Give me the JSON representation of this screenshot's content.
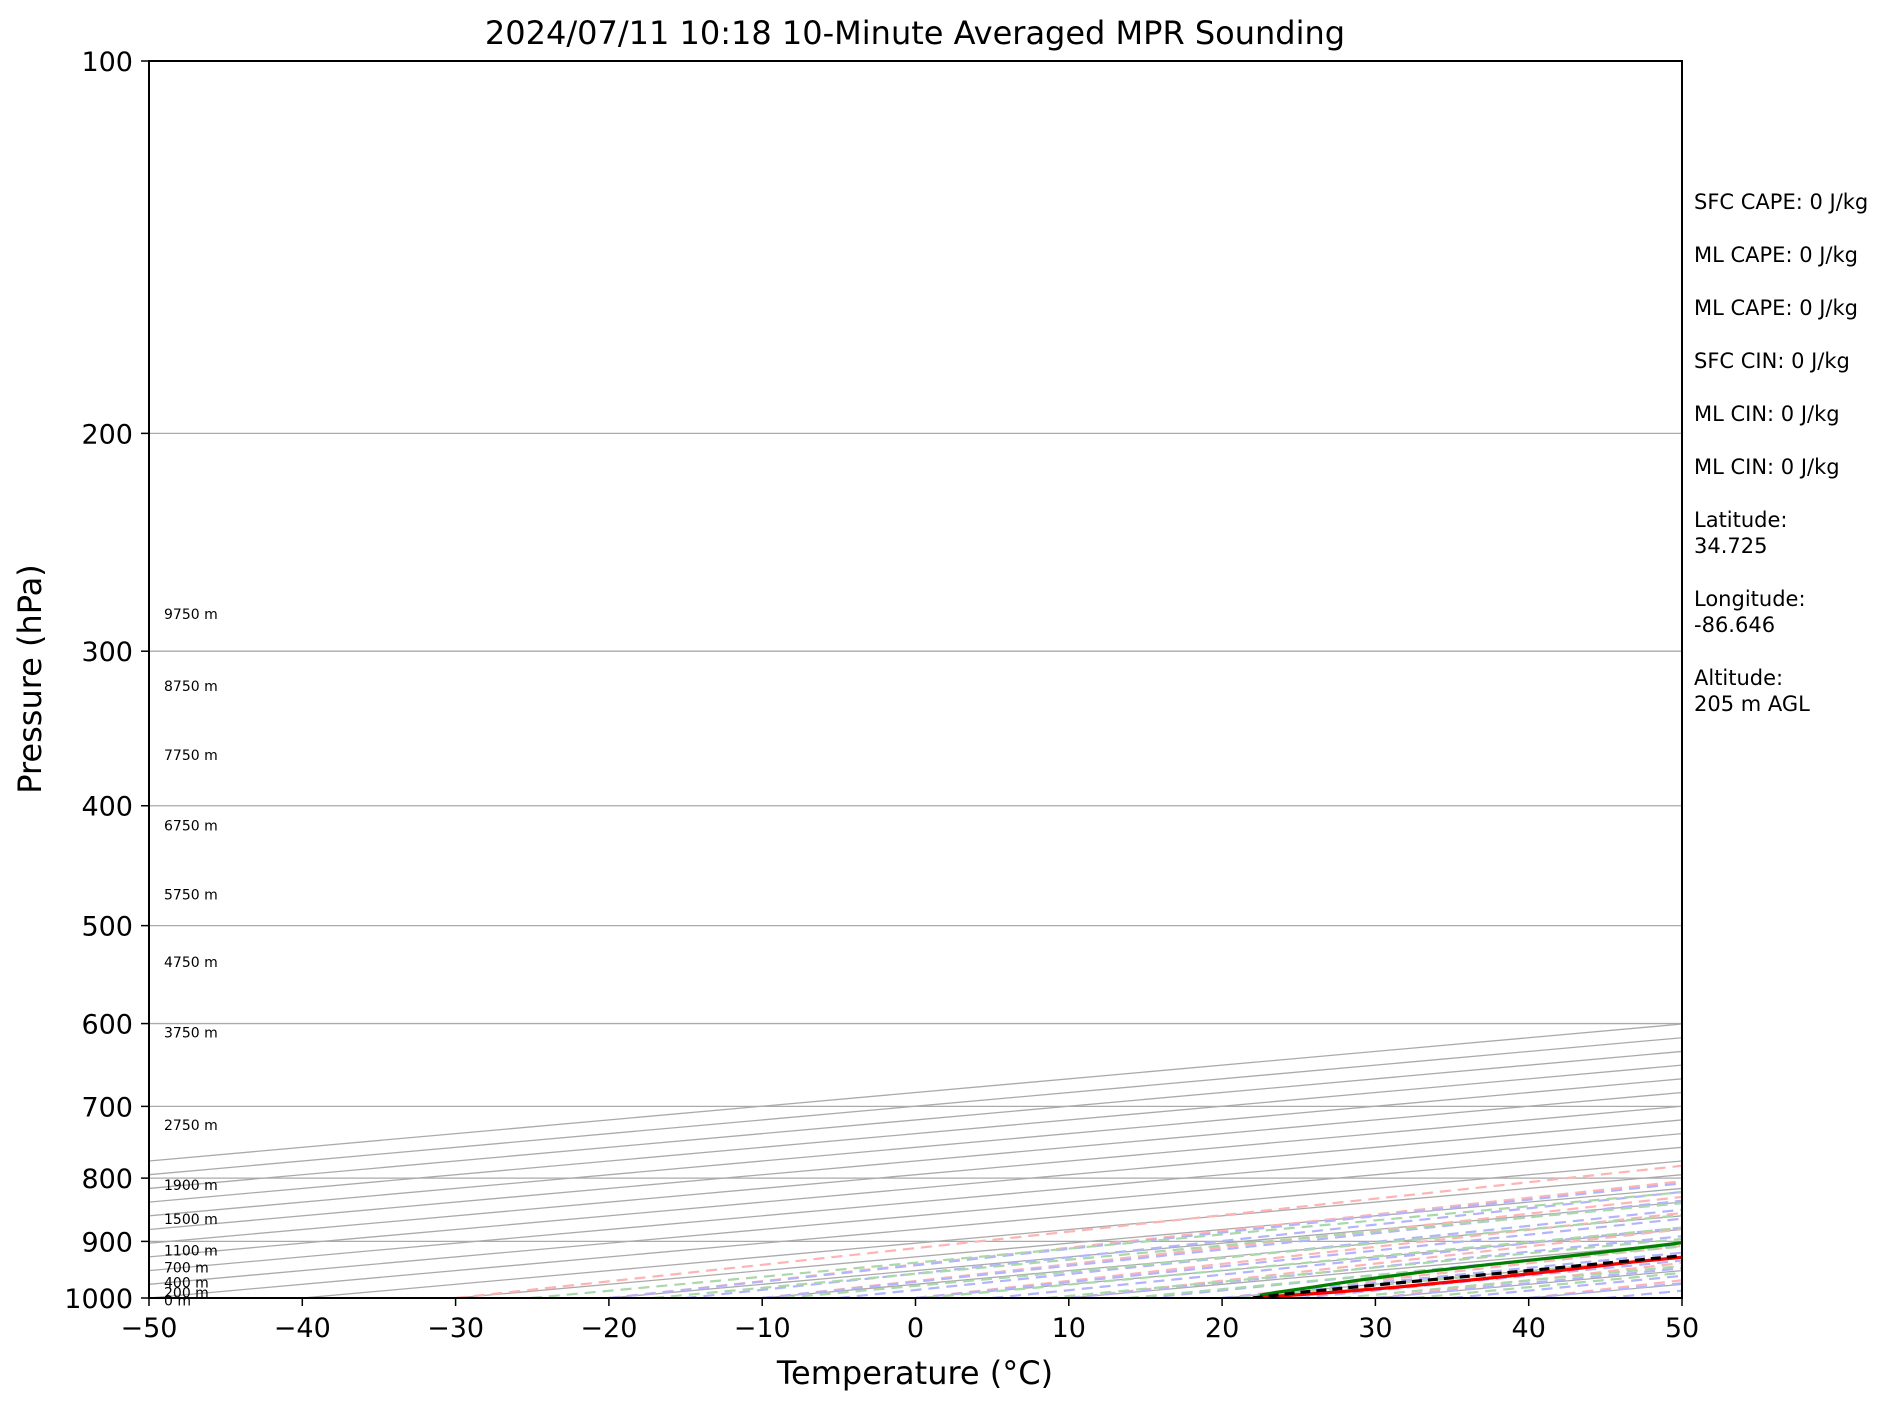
{
  "chart_data": {
    "type": "skew-t",
    "title": "2024/07/11 10:18 10-Minute Averaged MPR Sounding",
    "xlabel": "Temperature (°C)",
    "ylabel": "Pressure (hPa)",
    "xlim": [
      -50,
      50
    ],
    "ylim": [
      1000,
      100
    ],
    "y_scale": "log",
    "x_ticks": [
      "−50",
      "−40",
      "−30",
      "−20",
      "−10",
      "0",
      "10",
      "20",
      "30",
      "40",
      "50"
    ],
    "y_ticks": [
      "100",
      "200",
      "300",
      "400",
      "500",
      "600",
      "700",
      "800",
      "900",
      "1000"
    ],
    "height_labels": [
      {
        "text": "9750 m",
        "p": 280
      },
      {
        "text": "8750 m",
        "p": 320
      },
      {
        "text": "7750 m",
        "p": 364
      },
      {
        "text": "6750 m",
        "p": 415
      },
      {
        "text": "5750 m",
        "p": 472
      },
      {
        "text": "4750 m",
        "p": 535
      },
      {
        "text": "3750 m",
        "p": 610
      },
      {
        "text": "2750 m",
        "p": 725
      },
      {
        "text": "1900 m",
        "p": 810
      },
      {
        "text": "1500 m",
        "p": 863
      },
      {
        "text": "1100 m",
        "p": 915
      },
      {
        "text": "700 m",
        "p": 945
      },
      {
        "text": "400 m",
        "p": 972
      },
      {
        "text": "200 m",
        "p": 990
      },
      {
        "text": "0 m",
        "p": 1005
      }
    ],
    "annotations": [
      "SFC CAPE: 0 J/kg",
      "ML CAPE: 0 J/kg",
      "ML CAPE: 0 J/kg",
      "SFC CIN: 0 J/kg",
      "ML CIN: 0 J/kg",
      "ML CIN: 0 J/kg",
      "Latitude:\n34.725",
      "Longitude:\n-86.646",
      "Altitude:\n205 m AGL"
    ],
    "series": [
      {
        "color": "#ff0000",
        "points": [
          [
            22,
            1000
          ],
          [
            23,
            990
          ],
          [
            23.5,
            980
          ],
          [
            23,
            965
          ],
          [
            22,
            950
          ],
          [
            20.5,
            935
          ],
          [
            20,
            920
          ],
          [
            19.5,
            900
          ],
          [
            19,
            880
          ],
          [
            18.5,
            860
          ],
          [
            18,
            840
          ],
          [
            17.5,
            820
          ],
          [
            17.5,
            800
          ],
          [
            17.5,
            780
          ],
          [
            17.5,
            760
          ],
          [
            17,
            740
          ],
          [
            16,
            710
          ],
          [
            15,
            680
          ],
          [
            14,
            650
          ],
          [
            13,
            620
          ],
          [
            12.5,
            600
          ],
          [
            11.5,
            570
          ],
          [
            10,
            540
          ],
          [
            8.5,
            515
          ],
          [
            6.5,
            485
          ],
          [
            4,
            450
          ],
          [
            1,
            415
          ],
          [
            -1.5,
            390
          ],
          [
            -3.5,
            370
          ],
          [
            -6,
            348
          ],
          [
            -8.5,
            327
          ],
          [
            -10.5,
            310
          ],
          [
            -12,
            300
          ],
          [
            -14,
            290
          ],
          [
            -15,
            282
          ]
        ]
      },
      {
        "color": "#008000",
        "points": [
          [
            20.5,
            995
          ],
          [
            19.5,
            990
          ],
          [
            18,
            980
          ],
          [
            16,
            968
          ],
          [
            14,
            952
          ],
          [
            13,
            940
          ],
          [
            12,
            925
          ],
          [
            10,
            905
          ],
          [
            7,
            885
          ],
          [
            4.5,
            865
          ],
          [
            2.5,
            845
          ],
          [
            1,
            825
          ],
          [
            -1,
            800
          ],
          [
            -1.5,
            780
          ],
          [
            -2,
            755
          ],
          [
            -3,
            735
          ],
          [
            -4.5,
            718
          ],
          [
            -5.5,
            700
          ],
          [
            -6.5,
            680
          ],
          [
            -7,
            660
          ],
          [
            -8,
            635
          ],
          [
            -9.5,
            612
          ],
          [
            -10,
            600
          ],
          [
            -9,
            580
          ],
          [
            -8.5,
            560
          ],
          [
            -9,
            545
          ],
          [
            -10,
            530
          ],
          [
            -12.5,
            515
          ],
          [
            -14,
            500
          ],
          [
            -15,
            490
          ],
          [
            -16,
            478
          ],
          [
            -18,
            462
          ],
          [
            -20.5,
            445
          ],
          [
            -22,
            435
          ],
          [
            -23,
            420
          ],
          [
            -24,
            405
          ],
          [
            -25,
            397
          ],
          [
            -25,
            385
          ],
          [
            -26.5,
            374
          ],
          [
            -28.5,
            362
          ],
          [
            -31,
            348
          ],
          [
            -32.5,
            338
          ],
          [
            -33.5,
            325
          ],
          [
            -35.5,
            316
          ],
          [
            -37.5,
            308
          ],
          [
            -39,
            300
          ],
          [
            -40.5,
            292
          ],
          [
            -41.5,
            283
          ],
          [
            -41,
            280
          ],
          [
            -39,
            275
          ]
        ]
      },
      {
        "color": "#000000",
        "dashed": true,
        "points": [
          [
            22,
            1000
          ],
          [
            21,
            990
          ],
          [
            20.5,
            975
          ],
          [
            20,
            950
          ],
          [
            19,
            920
          ],
          [
            18,
            885
          ],
          [
            17,
            850
          ],
          [
            16,
            815
          ],
          [
            14.5,
            775
          ],
          [
            13,
            735
          ],
          [
            11.5,
            700
          ],
          [
            10,
            665
          ],
          [
            8.5,
            635
          ],
          [
            7,
            605
          ],
          [
            5,
            575
          ],
          [
            3,
            547
          ],
          [
            1,
            522
          ],
          [
            -1.5,
            497
          ],
          [
            -4,
            472
          ],
          [
            -7,
            447
          ],
          [
            -10,
            423
          ],
          [
            -13,
            400
          ],
          [
            -16,
            378
          ],
          [
            -19,
            357
          ],
          [
            -22,
            338
          ],
          [
            -25,
            320
          ],
          [
            -27.5,
            305
          ],
          [
            -30,
            292
          ],
          [
            -32.5,
            282
          ]
        ]
      }
    ],
    "colors": {
      "temperature": "#ff0000",
      "dewpoint": "#008000",
      "parcel": "#000000",
      "isotherms": "#aaaaaa",
      "dry_adiabats": "#ffb3b3",
      "moist_adiabats": "#b3b3ff",
      "mixing_ratio": "#a9d8a9"
    }
  }
}
